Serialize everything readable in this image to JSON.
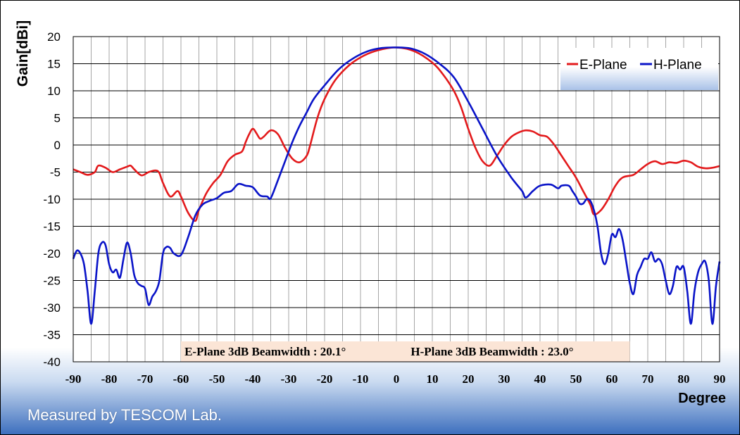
{
  "chart_data": {
    "type": "line",
    "ylabel": "Gain[dBi]",
    "xlabel": "Degree",
    "xlim": [
      -90,
      90
    ],
    "ylim": [
      -40,
      20
    ],
    "xticks": [
      -90,
      -80,
      -70,
      -60,
      -50,
      -40,
      -30,
      -20,
      -10,
      0,
      10,
      20,
      30,
      40,
      50,
      60,
      70,
      80,
      90
    ],
    "yticks": [
      20,
      15,
      10,
      5,
      0,
      -5,
      -10,
      -15,
      -20,
      -25,
      -30,
      -35,
      -40
    ],
    "grid": true,
    "legend_position": "top-right",
    "series": [
      {
        "name": "E-Plane",
        "color": "#e31a1c",
        "points": [
          [
            -90,
            -4.5
          ],
          [
            -88,
            -5
          ],
          [
            -86,
            -5.5
          ],
          [
            -84,
            -5
          ],
          [
            -83,
            -3.8
          ],
          [
            -81,
            -4.2
          ],
          [
            -79,
            -5
          ],
          [
            -77,
            -4.5
          ],
          [
            -75,
            -4
          ],
          [
            -74,
            -3.8
          ],
          [
            -73,
            -4.5
          ],
          [
            -71,
            -5.6
          ],
          [
            -69,
            -5
          ],
          [
            -67,
            -4.7
          ],
          [
            -66,
            -5.2
          ],
          [
            -65,
            -7
          ],
          [
            -63,
            -9.5
          ],
          [
            -61,
            -8.5
          ],
          [
            -60,
            -9.5
          ],
          [
            -58,
            -12.5
          ],
          [
            -56,
            -14
          ],
          [
            -55,
            -12
          ],
          [
            -53,
            -9
          ],
          [
            -51,
            -7
          ],
          [
            -49,
            -5.5
          ],
          [
            -47,
            -3
          ],
          [
            -45,
            -1.8
          ],
          [
            -43,
            -1.2
          ],
          [
            -42,
            0.5
          ],
          [
            -41,
            2
          ],
          [
            -40,
            3
          ],
          [
            -39,
            2.2
          ],
          [
            -38,
            1.2
          ],
          [
            -37,
            1.5
          ],
          [
            -35,
            2.7
          ],
          [
            -33,
            2
          ],
          [
            -31,
            -0.5
          ],
          [
            -29,
            -2.5
          ],
          [
            -27,
            -3.2
          ],
          [
            -25,
            -2
          ],
          [
            -24,
            0
          ],
          [
            -22,
            5
          ],
          [
            -20,
            8.5
          ],
          [
            -17,
            12
          ],
          [
            -13,
            14.8
          ],
          [
            -9,
            16.5
          ],
          [
            -5,
            17.5
          ],
          [
            0,
            18
          ],
          [
            5,
            17.3
          ],
          [
            10,
            15.2
          ],
          [
            13,
            13
          ],
          [
            16,
            10
          ],
          [
            18,
            7
          ],
          [
            20,
            3
          ],
          [
            22,
            -0.5
          ],
          [
            24,
            -3
          ],
          [
            26,
            -3.8
          ],
          [
            28,
            -2
          ],
          [
            30,
            0
          ],
          [
            32,
            1.5
          ],
          [
            34,
            2.3
          ],
          [
            36,
            2.7
          ],
          [
            38,
            2.5
          ],
          [
            40,
            1.8
          ],
          [
            42,
            1.5
          ],
          [
            44,
            0
          ],
          [
            46,
            -2
          ],
          [
            48,
            -4
          ],
          [
            50,
            -6
          ],
          [
            52,
            -8.5
          ],
          [
            54,
            -11
          ],
          [
            55,
            -12.8
          ],
          [
            57,
            -12
          ],
          [
            59,
            -10
          ],
          [
            61,
            -7.5
          ],
          [
            63,
            -6
          ],
          [
            66,
            -5.5
          ],
          [
            68,
            -4.5
          ],
          [
            70,
            -3.5
          ],
          [
            72,
            -3
          ],
          [
            74,
            -3.5
          ],
          [
            76,
            -3.2
          ],
          [
            78,
            -3.3
          ],
          [
            80,
            -2.9
          ],
          [
            82,
            -3.2
          ],
          [
            84,
            -4
          ],
          [
            86,
            -4.3
          ],
          [
            88,
            -4.2
          ],
          [
            90,
            -3.9
          ]
        ]
      },
      {
        "name": "H-Plane",
        "color": "#0a14c8",
        "points": [
          [
            -90,
            -21
          ],
          [
            -89,
            -19.5
          ],
          [
            -88,
            -20
          ],
          [
            -87,
            -22
          ],
          [
            -86,
            -27
          ],
          [
            -85,
            -33
          ],
          [
            -84,
            -27
          ],
          [
            -83,
            -20
          ],
          [
            -82,
            -18
          ],
          [
            -81,
            -18.5
          ],
          [
            -80,
            -22
          ],
          [
            -79,
            -23.5
          ],
          [
            -78,
            -23
          ],
          [
            -77,
            -24.5
          ],
          [
            -76,
            -21
          ],
          [
            -75,
            -18
          ],
          [
            -74,
            -20
          ],
          [
            -73,
            -24
          ],
          [
            -72,
            -25.5
          ],
          [
            -71,
            -26
          ],
          [
            -70,
            -26.5
          ],
          [
            -69,
            -29.5
          ],
          [
            -68,
            -28
          ],
          [
            -67,
            -27
          ],
          [
            -66,
            -25
          ],
          [
            -65,
            -20
          ],
          [
            -64,
            -18.8
          ],
          [
            -63,
            -19
          ],
          [
            -62,
            -20
          ],
          [
            -60,
            -20.3
          ],
          [
            -58,
            -17
          ],
          [
            -56,
            -13
          ],
          [
            -54,
            -11
          ],
          [
            -52,
            -10.3
          ],
          [
            -50,
            -9.8
          ],
          [
            -48,
            -8.8
          ],
          [
            -46,
            -8.5
          ],
          [
            -44,
            -7.2
          ],
          [
            -42,
            -7.5
          ],
          [
            -40,
            -7.8
          ],
          [
            -38,
            -9.3
          ],
          [
            -36,
            -9.5
          ],
          [
            -35,
            -9.8
          ],
          [
            -33,
            -6.5
          ],
          [
            -31,
            -3
          ],
          [
            -29,
            0.5
          ],
          [
            -27,
            3.5
          ],
          [
            -25,
            6
          ],
          [
            -23,
            8.5
          ],
          [
            -20,
            11
          ],
          [
            -16,
            14
          ],
          [
            -12,
            16
          ],
          [
            -8,
            17.3
          ],
          [
            -4,
            17.9
          ],
          [
            0,
            18
          ],
          [
            4,
            17.8
          ],
          [
            8,
            16.8
          ],
          [
            12,
            15
          ],
          [
            16,
            12.5
          ],
          [
            20,
            8
          ],
          [
            24,
            3
          ],
          [
            28,
            -2
          ],
          [
            32,
            -6
          ],
          [
            35,
            -8.5
          ],
          [
            36,
            -9.7
          ],
          [
            38,
            -8.5
          ],
          [
            40,
            -7.5
          ],
          [
            43,
            -7.3
          ],
          [
            45,
            -8
          ],
          [
            46,
            -7.5
          ],
          [
            48,
            -7.5
          ],
          [
            49,
            -8.5
          ],
          [
            50,
            -9.5
          ],
          [
            51,
            -10.8
          ],
          [
            52,
            -10.8
          ],
          [
            53,
            -10
          ],
          [
            54,
            -10.3
          ],
          [
            55,
            -12
          ],
          [
            56,
            -15
          ],
          [
            57,
            -20
          ],
          [
            58,
            -22
          ],
          [
            59,
            -20
          ],
          [
            60,
            -16.5
          ],
          [
            61,
            -17
          ],
          [
            62,
            -15.5
          ],
          [
            63,
            -17.5
          ],
          [
            64,
            -21.5
          ],
          [
            65,
            -25.5
          ],
          [
            66,
            -27.5
          ],
          [
            67,
            -24
          ],
          [
            68,
            -22.5
          ],
          [
            69,
            -21
          ],
          [
            70,
            -21
          ],
          [
            71,
            -19.8
          ],
          [
            72,
            -21.5
          ],
          [
            73,
            -21
          ],
          [
            74,
            -22
          ],
          [
            75,
            -25
          ],
          [
            76,
            -27.5
          ],
          [
            77,
            -26
          ],
          [
            78,
            -22.5
          ],
          [
            79,
            -23
          ],
          [
            80,
            -22.5
          ],
          [
            81,
            -27
          ],
          [
            82,
            -33
          ],
          [
            83,
            -27
          ],
          [
            84,
            -23.5
          ],
          [
            85,
            -22
          ],
          [
            86,
            -21.5
          ],
          [
            87,
            -25
          ],
          [
            88,
            -33
          ],
          [
            89,
            -26
          ],
          [
            90,
            -21.5
          ]
        ]
      }
    ]
  },
  "annotations": {
    "e_beamwidth": "E-Plane 3dB Beamwidth : 20.1°",
    "h_beamwidth": "H-Plane 3dB Beamwidth : 23.0°",
    "annotation_bg": "#fbe5d6"
  },
  "legend": {
    "e_label": "E-Plane",
    "h_label": "H-Plane"
  },
  "footer": {
    "credit": "Measured by TESCOM Lab."
  }
}
